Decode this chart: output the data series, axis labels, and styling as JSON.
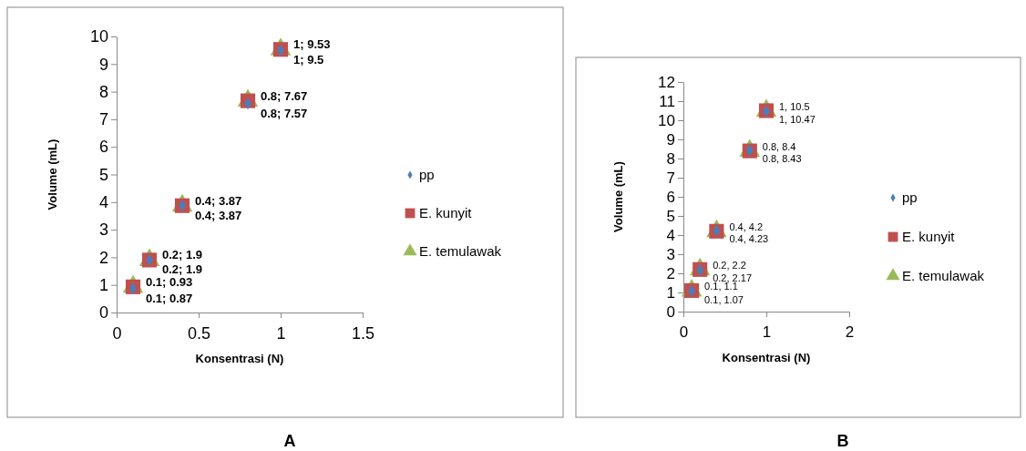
{
  "chart_data": [
    {
      "type": "scatter",
      "xlabel": "Konsentrasi (N)",
      "ylabel": "Volume (mL)",
      "annotations": [
        "A"
      ],
      "x": [
        0.1,
        0.2,
        0.4,
        0.8,
        1
      ],
      "xlim": [
        0,
        1.5
      ],
      "xticks": [
        0,
        0.5,
        1,
        1.5
      ],
      "ylim": [
        0,
        10
      ],
      "yticks": [
        0,
        1,
        2,
        3,
        4,
        5,
        6,
        7,
        8,
        9,
        10
      ],
      "legend": "right",
      "grid": false,
      "series": [
        {
          "name": "pp",
          "color": "#4a7ebb",
          "marker": "diamond",
          "values": [
            0.87,
            1.9,
            3.87,
            7.57,
            9.5
          ],
          "value_labels": [
            "0.1; 0.87",
            "0.2; 1.9",
            "0.4; 3.87",
            "0.8; 7.57",
            "1; 9.5"
          ]
        },
        {
          "name": "E. kunyit",
          "color": "#c0504d",
          "marker": "square",
          "values": [
            0.93,
            1.9,
            3.87,
            7.67,
            9.53
          ]
        },
        {
          "name": "E. temulawak",
          "color": "#9bbb59",
          "marker": "triangle",
          "values": [
            0.93,
            1.9,
            3.87,
            7.67,
            9.53
          ],
          "value_labels": [
            "0.1; 0.93",
            "0.2; 1.9",
            "0.4; 3.87",
            "0.8; 7.67",
            "1; 9.53"
          ]
        }
      ]
    },
    {
      "type": "scatter",
      "xlabel": "Konsentrasi (N)",
      "ylabel": "Volume (mL)",
      "annotations": [
        "B"
      ],
      "x": [
        0.1,
        0.2,
        0.4,
        0.8,
        1
      ],
      "xlim": [
        0,
        2
      ],
      "xticks": [
        0,
        1,
        2
      ],
      "ylim": [
        0,
        12
      ],
      "yticks": [
        0,
        1,
        2,
        3,
        4,
        5,
        6,
        7,
        8,
        9,
        10,
        11,
        12
      ],
      "legend": "right",
      "grid": false,
      "series": [
        {
          "name": "pp",
          "color": "#4a7ebb",
          "marker": "diamond",
          "values": [
            1.07,
            2.17,
            4.23,
            8.43,
            10.47
          ],
          "value_labels": [
            "0.1, 1.07",
            "0.2, 2.17",
            "0.4, 4.23",
            "0.8, 8.43",
            "1, 10.47"
          ]
        },
        {
          "name": "E. kunyit",
          "color": "#c0504d",
          "marker": "square",
          "values": [
            1.1,
            2.2,
            4.2,
            8.4,
            10.5
          ]
        },
        {
          "name": "E. temulawak",
          "color": "#9bbb59",
          "marker": "triangle",
          "values": [
            1.1,
            2.2,
            4.2,
            8.4,
            10.5
          ],
          "value_labels": [
            "0.1, 1.1",
            "0.2, 2.2",
            "0.4, 4.2",
            "0.8, 8.4",
            "1, 10.5"
          ]
        }
      ]
    }
  ]
}
